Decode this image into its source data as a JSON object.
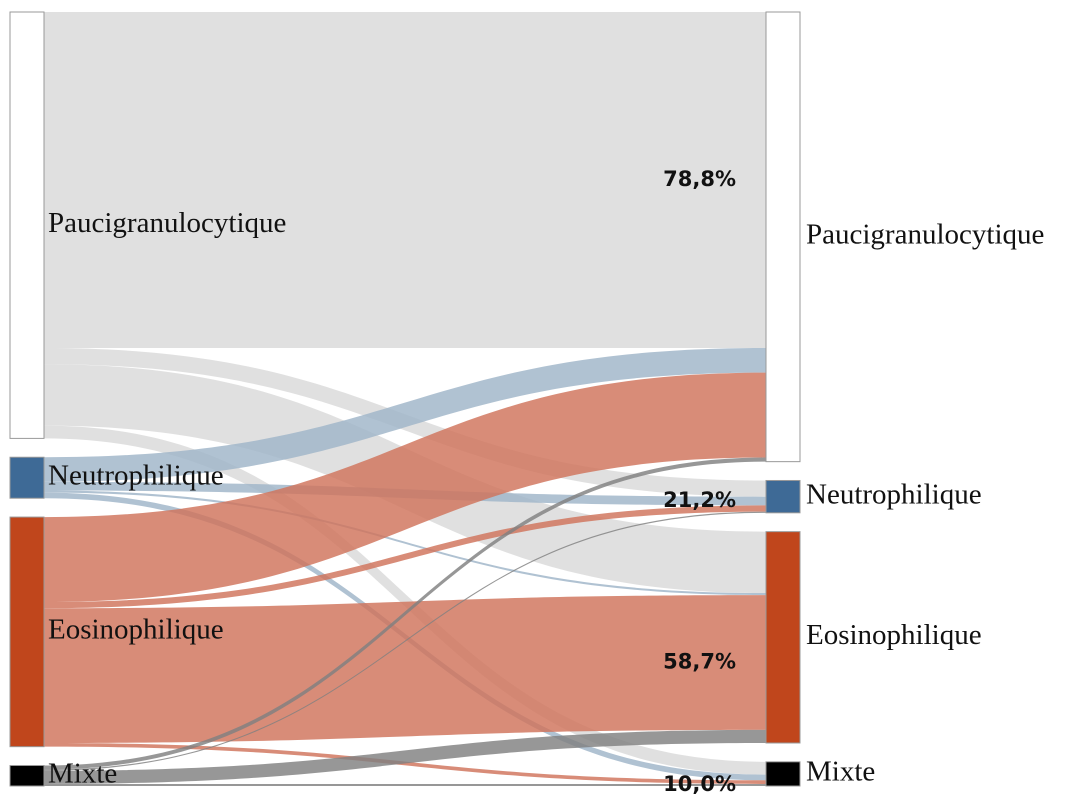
{
  "chart_data": {
    "type": "sankey",
    "left_nodes": [
      {
        "name": "Paucigranulocytique",
        "value": 104,
        "color": "#ffffff",
        "link_color": "#d9d9d9"
      },
      {
        "name": "Neutrophilique",
        "value": 10,
        "color": "#3e6a96",
        "link_color": "#9fb4c8"
      },
      {
        "name": "Eosinophilique",
        "value": 56,
        "color": "#c0461c",
        "link_color": "#d0735a"
      },
      {
        "name": "Mixte",
        "value": 5,
        "color": "#000000",
        "link_color": "#808080"
      }
    ],
    "right_nodes": [
      {
        "name": "Paucigranulocytique",
        "color": "#ffffff"
      },
      {
        "name": "Neutrophilique",
        "color": "#3e6a96"
      },
      {
        "name": "Eosinophilique",
        "color": "#c0461c"
      },
      {
        "name": "Mixte",
        "color": "#000000"
      }
    ],
    "links": [
      {
        "source": 0,
        "target": 0,
        "value": 78.8,
        "value_label": "78,8%"
      },
      {
        "source": 0,
        "target": 1,
        "value": 3.8
      },
      {
        "source": 0,
        "target": 2,
        "value": 14.4
      },
      {
        "source": 0,
        "target": 3,
        "value": 3.0
      },
      {
        "source": 1,
        "target": 0,
        "value": 60
      },
      {
        "source": 1,
        "target": 1,
        "value": 21.2,
        "value_label": "21,2%"
      },
      {
        "source": 1,
        "target": 2,
        "value": 5
      },
      {
        "source": 1,
        "target": 3,
        "value": 13.8
      },
      {
        "source": 2,
        "target": 0,
        "value": 37
      },
      {
        "source": 2,
        "target": 1,
        "value": 2.7
      },
      {
        "source": 2,
        "target": 2,
        "value": 58.7,
        "value_label": "58,7%"
      },
      {
        "source": 2,
        "target": 3,
        "value": 1.6
      },
      {
        "source": 3,
        "target": 0,
        "value": 20
      },
      {
        "source": 3,
        "target": 1,
        "value": 6
      },
      {
        "source": 3,
        "target": 2,
        "value": 64
      },
      {
        "source": 3,
        "target": 3,
        "value": 10,
        "value_label": "10,0%"
      }
    ]
  }
}
